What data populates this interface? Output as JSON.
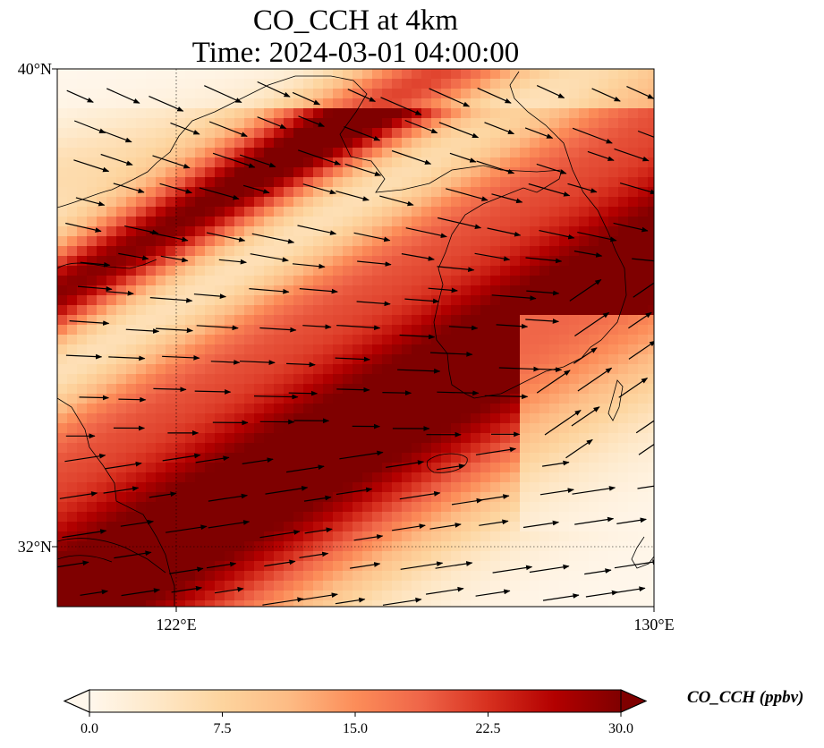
{
  "title": {
    "line1": "CO_CCH at 4km",
    "line2": "Time: 2024-03-01 04:00:00"
  },
  "map": {
    "lat_range": [
      31.1,
      40.0
    ],
    "lon_range": [
      120.0,
      130.0
    ],
    "lat_ticks": [
      {
        "value": 40,
        "label": "40°N"
      },
      {
        "value": 32,
        "label": "32°N"
      }
    ],
    "lon_ticks": [
      {
        "value": 122,
        "label": "122°E"
      },
      {
        "value": 130,
        "label": "130°E"
      }
    ],
    "gridlines": "dotted",
    "field": "CO_CCH",
    "field_unit": "ppbv",
    "wind_vectors": "black arrows"
  },
  "colorbar": {
    "label": "CO_CCH (ppbv)",
    "min": 0.0,
    "max": 30.0,
    "extend": "both",
    "ticks": [
      "0.0",
      "7.5",
      "15.0",
      "22.5",
      "30.0"
    ],
    "colors": [
      "#fff7ec",
      "#fee8c8",
      "#fdd49e",
      "#fdbb84",
      "#fc8d59",
      "#ef6548",
      "#d7301f",
      "#b30000",
      "#7f0000"
    ]
  }
}
